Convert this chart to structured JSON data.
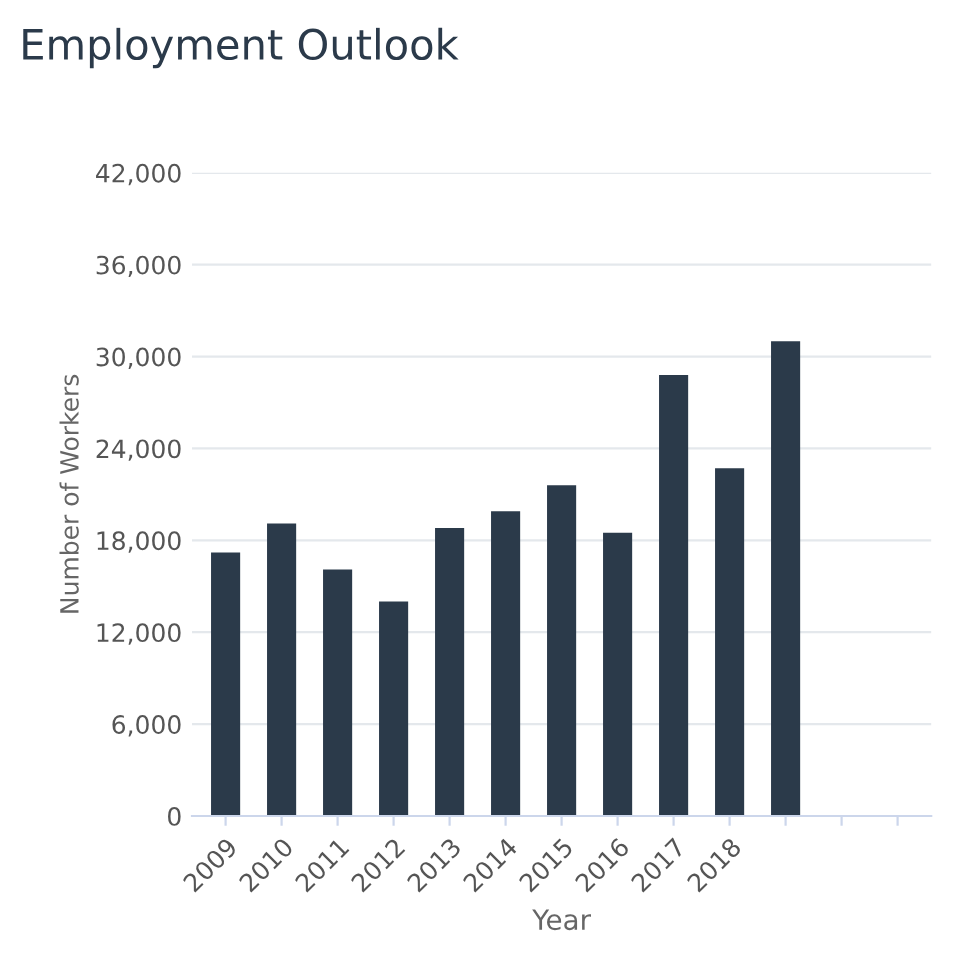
{
  "chart_data": {
    "type": "bar",
    "title": "Employment Outlook",
    "xlabel": "Year",
    "ylabel": "Number of Workers",
    "categories": [
      "2009",
      "2010",
      "2011",
      "2012",
      "2013",
      "2014",
      "2015",
      "2016",
      "2017",
      "2018",
      null,
      null,
      null
    ],
    "series": [
      {
        "color": "#2b3a4a",
        "values": [
          17200,
          19100,
          16100,
          14000,
          18800,
          19900,
          21600,
          18500,
          28800,
          22700,
          31000,
          null,
          null
        ]
      }
    ],
    "ylim": [
      0,
      42000
    ],
    "yticks": [
      {
        "value": 0,
        "label": "0"
      },
      {
        "value": 6000,
        "label": "6,000"
      },
      {
        "value": 12000,
        "label": "12,000"
      },
      {
        "value": 18000,
        "label": "18,000"
      },
      {
        "value": 24000,
        "label": "24,000"
      },
      {
        "value": 30000,
        "label": "30,000"
      },
      {
        "value": 36000,
        "label": "36,000"
      },
      {
        "value": 42000,
        "label": "42,000"
      }
    ],
    "grid": "y"
  }
}
